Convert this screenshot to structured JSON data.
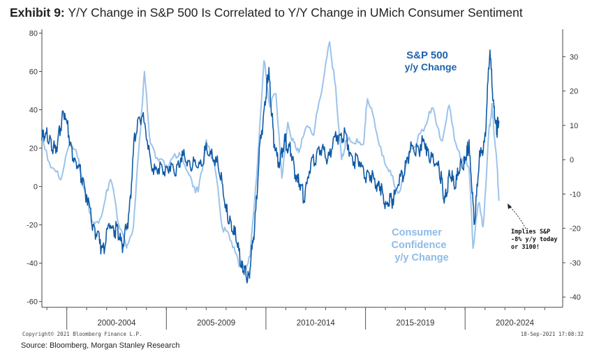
{
  "title": {
    "lead": "Exhibit 9:",
    "text": "Y/Y Change in S&P 500 Is Correlated to Y/Y Change in UMich Consumer Sentiment"
  },
  "copyright": "Copyright© 2021 Bloomberg Finance L.P.",
  "timestamp": "18-Sep-2021 17:08:32",
  "source": "Source: Bloomberg, Morgan Stanley Research",
  "annotations": {
    "sp_label_1": "S&P 500",
    "sp_label_2": "y/y Change",
    "cc_label_1": "Consumer",
    "cc_label_2": "Confidence",
    "cc_label_3": "y/y Change",
    "note_1": "Implies S&P",
    "note_2": "-8% y/y today",
    "note_3": "or 3100!"
  },
  "colors": {
    "sp500": "#0f5aa6",
    "consumer": "#9cc3ea",
    "label_sp": "#1d63ad",
    "label_cc": "#8dbbe8"
  },
  "chart_data": {
    "type": "line",
    "title": "Y/Y Change in S&P 500 Is Correlated to Y/Y Change in UMich Consumer Sentiment",
    "x_ticks": [
      "2000-2004",
      "2005-2009",
      "2010-2014",
      "2015-2019",
      "2020-2024"
    ],
    "xlim": [
      1998.75,
      2024.9
    ],
    "y_left": {
      "ticks": [
        "80",
        "60",
        "40",
        "20",
        "0",
        "-20",
        "-40",
        "-60"
      ],
      "lim": [
        -63,
        82
      ]
    },
    "y_right": {
      "ticks": [
        "30",
        "20",
        "10",
        "0",
        "-10",
        "-20",
        "-30",
        "-40"
      ],
      "lim": [
        -43,
        38
      ]
    },
    "grid": false,
    "series": [
      {
        "name": "S&P 500 y/y Change",
        "axis": "left",
        "x": [
          1998.75,
          1999.0,
          1999.3,
          1999.6,
          1999.9,
          2000.2,
          2000.5,
          2000.8,
          2001.2,
          2001.5,
          2001.8,
          2002.2,
          2002.5,
          2002.8,
          2003.1,
          2003.4,
          2003.8,
          2004.2,
          2004.6,
          2005.0,
          2005.4,
          2005.8,
          2006.2,
          2006.6,
          2007.0,
          2007.4,
          2007.8,
          2008.1,
          2008.4,
          2008.7,
          2008.9,
          2009.15,
          2009.4,
          2009.7,
          2010.0,
          2010.15,
          2010.4,
          2010.7,
          2011.0,
          2011.3,
          2011.6,
          2011.9,
          2012.3,
          2012.7,
          2013.1,
          2013.5,
          2013.9,
          2014.3,
          2014.7,
          2015.1,
          2015.5,
          2015.8,
          2016.1,
          2016.4,
          2016.8,
          2017.2,
          2017.6,
          2018.0,
          2018.3,
          2018.7,
          2018.95,
          2019.2,
          2019.5,
          2019.8,
          2020.05,
          2020.2,
          2020.45,
          2020.7,
          2021.0,
          2021.25,
          2021.45,
          2021.6,
          2021.7
        ],
        "values": [
          24,
          28,
          18,
          26,
          40,
          20,
          12,
          5,
          -15,
          -25,
          -32,
          -20,
          -23,
          -30,
          -18,
          25,
          40,
          12,
          8,
          10,
          8,
          15,
          12,
          10,
          18,
          16,
          2,
          -18,
          -22,
          -38,
          -45,
          -47,
          -25,
          20,
          48,
          60,
          22,
          12,
          25,
          15,
          3,
          -5,
          12,
          20,
          15,
          25,
          28,
          15,
          12,
          5,
          3,
          -3,
          -10,
          -5,
          5,
          18,
          20,
          22,
          14,
          10,
          -8,
          5,
          3,
          10,
          15,
          22,
          -20,
          12,
          25,
          72,
          38,
          30,
          33
        ]
      },
      {
        "name": "Consumer Confidence y/y Change",
        "axis": "right",
        "x": [
          1998.75,
          1999.2,
          1999.7,
          2000.2,
          2000.6,
          2001.0,
          2001.4,
          2001.8,
          2002.2,
          2002.6,
          2003.0,
          2003.3,
          2003.6,
          2003.9,
          2004.2,
          2004.6,
          2005.0,
          2005.5,
          2005.8,
          2006.2,
          2006.6,
          2007.0,
          2007.4,
          2007.8,
          2008.2,
          2008.6,
          2008.9,
          2009.2,
          2009.6,
          2009.9,
          2010.2,
          2010.5,
          2010.8,
          2011.1,
          2011.4,
          2011.7,
          2012.0,
          2012.4,
          2012.8,
          2013.2,
          2013.5,
          2013.8,
          2014.0,
          2014.5,
          2014.9,
          2015.1,
          2015.5,
          2015.9,
          2016.3,
          2016.7,
          2017.1,
          2017.5,
          2018.0,
          2018.4,
          2018.8,
          2019.2,
          2019.6,
          2019.9,
          2020.2,
          2020.4,
          2020.7,
          2020.9,
          2021.2,
          2021.35,
          2021.55,
          2021.7
        ],
        "values": [
          5,
          -2,
          -5,
          5,
          0,
          -12,
          -20,
          -15,
          -5,
          -18,
          -25,
          -22,
          2,
          25,
          5,
          0,
          -2,
          2,
          0,
          -5,
          -10,
          5,
          0,
          -20,
          -22,
          -30,
          -32,
          -28,
          0,
          30,
          15,
          20,
          -5,
          10,
          5,
          2,
          10,
          8,
          20,
          35,
          20,
          0,
          5,
          5,
          5,
          18,
          10,
          0,
          -5,
          -10,
          0,
          5,
          10,
          15,
          5,
          15,
          3,
          0,
          -2,
          -25,
          -12,
          -20,
          8,
          15,
          3,
          -12
        ]
      }
    ]
  }
}
